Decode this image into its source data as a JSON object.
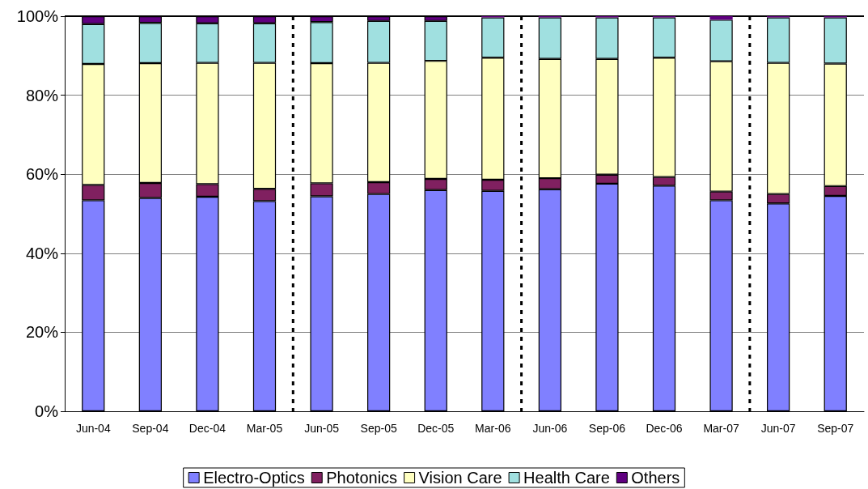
{
  "chart_data": {
    "type": "bar",
    "stacked": true,
    "categories": [
      "Jun-04",
      "Sep-04",
      "Dec-04",
      "Mar-05",
      "Jun-05",
      "Sep-05",
      "Dec-05",
      "Mar-06",
      "Jun-06",
      "Sep-06",
      "Dec-06",
      "Mar-07",
      "Jun-07",
      "Sep-07"
    ],
    "series": [
      {
        "name": "Electro-Optics",
        "color": "#8080ff",
        "values": [
          53.4,
          54.0,
          54.3,
          53.2,
          54.4,
          55.0,
          56.0,
          55.8,
          56.2,
          57.6,
          57.1,
          53.4,
          52.6,
          54.5
        ]
      },
      {
        "name": "Photonics",
        "color": "#802060",
        "values": [
          3.9,
          3.8,
          3.2,
          3.1,
          3.3,
          3.0,
          2.8,
          2.8,
          2.8,
          2.3,
          2.2,
          2.2,
          2.4,
          2.5
        ]
      },
      {
        "name": "Vision Care",
        "color": "#ffffc0",
        "values": [
          30.6,
          30.3,
          30.7,
          31.9,
          30.4,
          30.2,
          29.9,
          30.9,
          30.2,
          29.3,
          30.2,
          33.0,
          33.2,
          31.0
        ]
      },
      {
        "name": "Health Care",
        "color": "#a0e0e0",
        "values": [
          10.1,
          10.2,
          10.0,
          10.0,
          10.4,
          10.6,
          10.1,
          10.2,
          10.5,
          10.5,
          10.2,
          10.5,
          11.5,
          11.7
        ]
      },
      {
        "name": "Others",
        "color": "#600080",
        "values": [
          2.0,
          1.7,
          1.8,
          1.8,
          1.5,
          1.2,
          1.2,
          0.3,
          0.3,
          0.3,
          0.3,
          0.9,
          0.3,
          0.3
        ]
      }
    ],
    "ylim": [
      0,
      100
    ],
    "yticks": [
      {
        "value": 0,
        "label": "0%"
      },
      {
        "value": 20,
        "label": "20%"
      },
      {
        "value": 40,
        "label": "40%"
      },
      {
        "value": 60,
        "label": "60%"
      },
      {
        "value": 80,
        "label": "80%"
      },
      {
        "value": 100,
        "label": "100%"
      }
    ],
    "grid": "y",
    "legend": "bottom"
  }
}
